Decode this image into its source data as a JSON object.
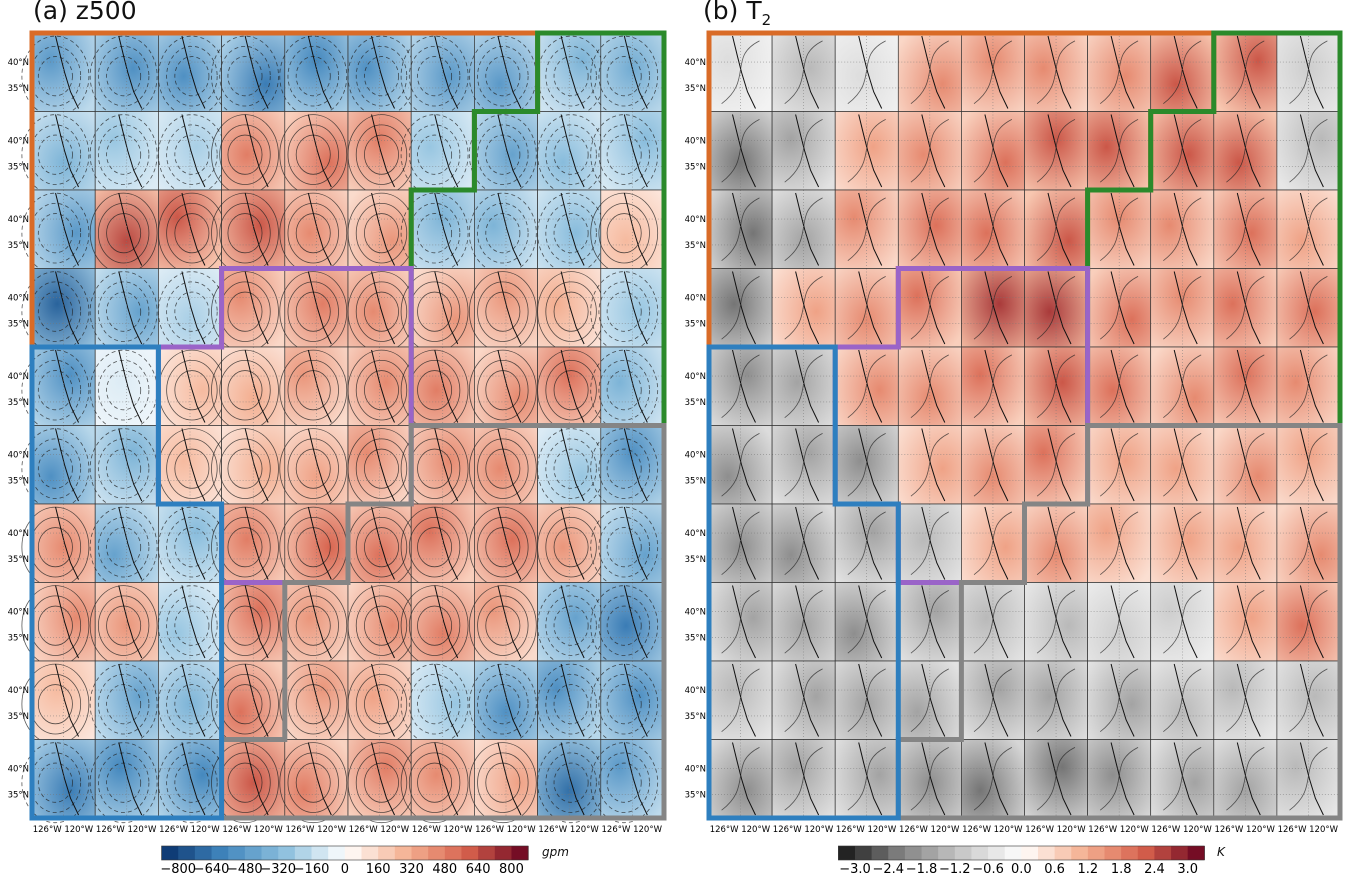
{
  "chart_data": [
    {
      "type": "heatmap",
      "title": "(a) z500",
      "grid": {
        "rows": 10,
        "cols": 10
      },
      "lat_ticks": [
        "40°N",
        "35°N"
      ],
      "lon_ticks": [
        "126°W",
        "120°W"
      ],
      "colorbar": {
        "label": "gpm",
        "ticks": [
          "−800",
          "−640",
          "−480",
          "−320",
          "−160",
          "0",
          "160",
          "320",
          "480",
          "640",
          "800"
        ],
        "range": [
          -880,
          880
        ]
      },
      "cell_values": [
        [
          -0.55,
          -0.6,
          -0.6,
          -0.7,
          -0.65,
          -0.6,
          -0.55,
          -0.55,
          -0.4,
          -0.45
        ],
        [
          -0.4,
          -0.3,
          -0.25,
          0.55,
          0.6,
          0.55,
          -0.3,
          -0.5,
          -0.35,
          -0.35
        ],
        [
          -0.55,
          0.75,
          0.7,
          0.7,
          0.5,
          0.45,
          -0.4,
          -0.4,
          -0.35,
          0.3
        ],
        [
          -0.8,
          -0.5,
          -0.25,
          0.5,
          0.55,
          0.5,
          0.45,
          0.45,
          0.35,
          -0.3
        ],
        [
          -0.6,
          -0.1,
          0.3,
          0.35,
          0.45,
          0.5,
          0.55,
          0.5,
          0.6,
          -0.4
        ],
        [
          -0.6,
          -0.4,
          0.3,
          0.35,
          0.4,
          0.5,
          0.5,
          0.5,
          -0.3,
          -0.6
        ],
        [
          0.5,
          -0.5,
          -0.35,
          0.55,
          0.65,
          0.6,
          0.6,
          0.6,
          0.45,
          -0.5
        ],
        [
          0.5,
          0.45,
          -0.3,
          0.6,
          0.45,
          0.5,
          0.55,
          0.45,
          -0.5,
          -0.7
        ],
        [
          0.3,
          -0.5,
          -0.4,
          0.6,
          0.45,
          0.4,
          -0.3,
          -0.6,
          -0.6,
          -0.6
        ],
        [
          -0.7,
          -0.65,
          -0.65,
          0.7,
          0.55,
          0.55,
          0.5,
          0.4,
          -0.75,
          -0.55
        ]
      ],
      "regions": [
        {
          "color": "#d96b27",
          "cells": "rows 1-4 upper left (orange)"
        },
        {
          "color": "#2b8a2b",
          "cells": "upper right (green)"
        },
        {
          "color": "#9a64c8",
          "cells": "center (purple)"
        },
        {
          "color": "#858585",
          "cells": "lower right (gray)"
        },
        {
          "color": "#2e7fbf",
          "cells": "lower left (blue)"
        }
      ]
    },
    {
      "type": "heatmap",
      "title": "(b) T",
      "title_subscript": "2",
      "grid": {
        "rows": 10,
        "cols": 10
      },
      "lat_ticks": [
        "40°N",
        "35°N"
      ],
      "lon_ticks": [
        "126°W",
        "120°W"
      ],
      "colorbar": {
        "label": "K",
        "ticks": [
          "−3.0",
          "−2.4",
          "−1.8",
          "−1.2",
          "−0.6",
          "0.0",
          "0.6",
          "1.2",
          "1.8",
          "2.4",
          "3.0"
        ],
        "range": [
          -3.3,
          3.3
        ]
      },
      "cell_values": [
        [
          -0.2,
          -0.4,
          -0.2,
          0.5,
          0.5,
          0.5,
          0.5,
          0.7,
          0.7,
          -0.3
        ],
        [
          -0.7,
          -0.5,
          0.4,
          0.5,
          0.6,
          0.7,
          0.7,
          0.7,
          0.7,
          -0.4
        ],
        [
          -0.7,
          -0.5,
          0.5,
          0.6,
          0.6,
          0.7,
          0.5,
          0.5,
          0.6,
          0.4
        ],
        [
          -0.7,
          0.4,
          0.5,
          0.6,
          0.8,
          0.8,
          0.6,
          0.5,
          0.6,
          0.6
        ],
        [
          -0.6,
          -0.5,
          0.5,
          0.5,
          0.6,
          0.7,
          0.6,
          0.5,
          0.6,
          0.5
        ],
        [
          -0.6,
          -0.5,
          -0.6,
          0.4,
          0.5,
          0.6,
          0.4,
          0.4,
          0.5,
          0.4
        ],
        [
          -0.6,
          -0.6,
          -0.5,
          -0.4,
          0.4,
          0.5,
          0.4,
          0.4,
          0.4,
          0.5
        ],
        [
          -0.5,
          -0.5,
          -0.6,
          -0.5,
          -0.4,
          -0.4,
          -0.3,
          -0.3,
          0.4,
          0.6
        ],
        [
          -0.4,
          -0.5,
          -0.5,
          -0.5,
          -0.5,
          -0.5,
          -0.5,
          -0.4,
          -0.4,
          -0.4
        ],
        [
          -0.6,
          -0.5,
          -0.5,
          -0.6,
          -0.7,
          -0.7,
          -0.6,
          -0.5,
          -0.5,
          -0.4
        ]
      ]
    }
  ],
  "colors": {
    "orange": "#d96b27",
    "green": "#2b8a2b",
    "purple": "#9a64c8",
    "gray": "#858585",
    "blue": "#2e7fbf"
  }
}
